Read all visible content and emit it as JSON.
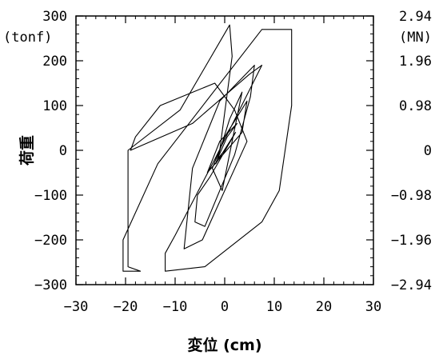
{
  "chart_data": {
    "type": "line",
    "title": "",
    "xlabel": "変位 (cm)",
    "ylabel": "荷重",
    "y_unit_left": "(tonf)",
    "y_unit_right": "(MN)",
    "xlim": [
      -30,
      30
    ],
    "ylim": [
      -300,
      300
    ],
    "x_ticks": [
      -30,
      -20,
      -10,
      0,
      10,
      20,
      30
    ],
    "x_tick_labels": [
      "−30",
      "−20",
      "−10",
      "0",
      "10",
      "20",
      "30"
    ],
    "y_ticks": [
      -300,
      -200,
      -100,
      0,
      100,
      200,
      300
    ],
    "y_tick_labels": [
      "−300",
      "−200",
      "−100",
      "0",
      "100",
      "200",
      "300"
    ],
    "y2_ticks": [
      -300,
      -200,
      -100,
      0,
      100,
      200,
      300
    ],
    "y2_tick_labels": [
      "−2.94",
      "−1.96",
      "−0.98",
      "0",
      "0.98",
      "1.96",
      "2.94"
    ],
    "grid": false,
    "series": [
      {
        "name": "",
        "color": "#000000",
        "x": [
          0.0,
          -1.5,
          0.5,
          2.5,
          -1.0,
          -3.5,
          3.5,
          4.5,
          0.0,
          -2.5,
          -0.5,
          3.5,
          1.0,
          -1.8,
          2.2,
          -3.0,
          -5.5,
          -6.0,
          -4.0,
          2.0,
          5.2,
          6.0,
          -1.0,
          -6.5,
          -8.2,
          -4.5,
          4.5,
          2.0,
          -2.0,
          -13.0,
          -18.0,
          -19.0,
          -6.5,
          5.0,
          7.5,
          -2.0,
          -10.0,
          -12.0,
          -12.0,
          -4.0,
          7.5,
          11.0,
          13.5,
          13.5,
          7.5,
          -13.5,
          -20.5,
          -20.5,
          -17.0,
          -19.5,
          -19.5,
          -9.0,
          1.0,
          1.5,
          -1.0
        ],
        "y": [
          0,
          -20,
          30,
          60,
          20,
          -50,
          40,
          110,
          30,
          -40,
          -90,
          130,
          70,
          -30,
          40,
          -60,
          -100,
          -160,
          -170,
          -10,
          120,
          190,
          110,
          -40,
          -220,
          -200,
          20,
          90,
          150,
          100,
          30,
          0,
          60,
          170,
          190,
          -20,
          -190,
          -230,
          -270,
          -260,
          -160,
          -90,
          100,
          270,
          270,
          -30,
          -200,
          -270,
          -270,
          -260,
          0,
          90,
          280,
          210,
          0
        ]
      }
    ]
  }
}
